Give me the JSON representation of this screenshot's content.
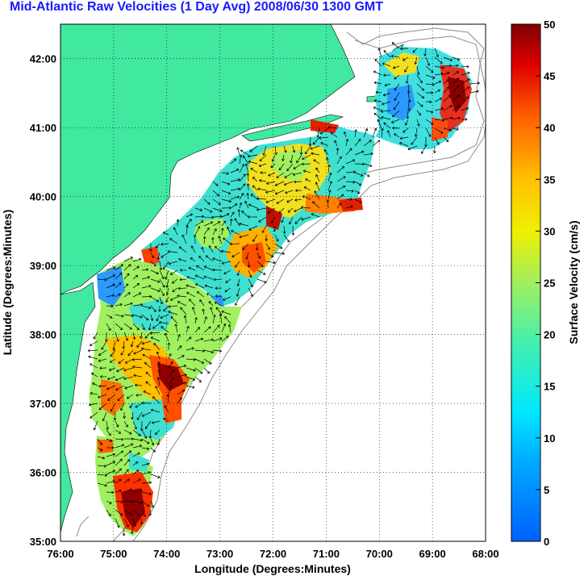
{
  "title": "Mid-Atlantic Raw Velocities (1 Day Avg) 2008/06/30 1300 GMT",
  "xlabel": "Longitude (Degrees:Minutes)",
  "ylabel": "Latitude (Degrees:Minutes)",
  "colorbar_label": "Surface Velocity (cm/s)",
  "colors": {
    "land": "#40e8a0",
    "grid": "#000000",
    "bathymetry": "#8c8c8c",
    "title": "#1a1aff"
  },
  "chart_data": {
    "type": "heatmap",
    "x_ticks": [
      "76:00",
      "75:00",
      "74:00",
      "73:00",
      "72:00",
      "71:00",
      "70:00",
      "69:00",
      "68:00"
    ],
    "y_ticks": [
      "42:00",
      "41:00",
      "40:00",
      "39:00",
      "38:00",
      "37:00",
      "36:00",
      "35:00"
    ],
    "xlim": [
      -76,
      -68
    ],
    "ylim": [
      35,
      42.5
    ],
    "grid": true,
    "colorbar": {
      "ticks": [
        "50",
        "45",
        "40",
        "35",
        "30",
        "25",
        "20",
        "15",
        "10",
        "5",
        "0"
      ],
      "range": [
        0,
        50
      ],
      "units": "cm/s"
    }
  }
}
